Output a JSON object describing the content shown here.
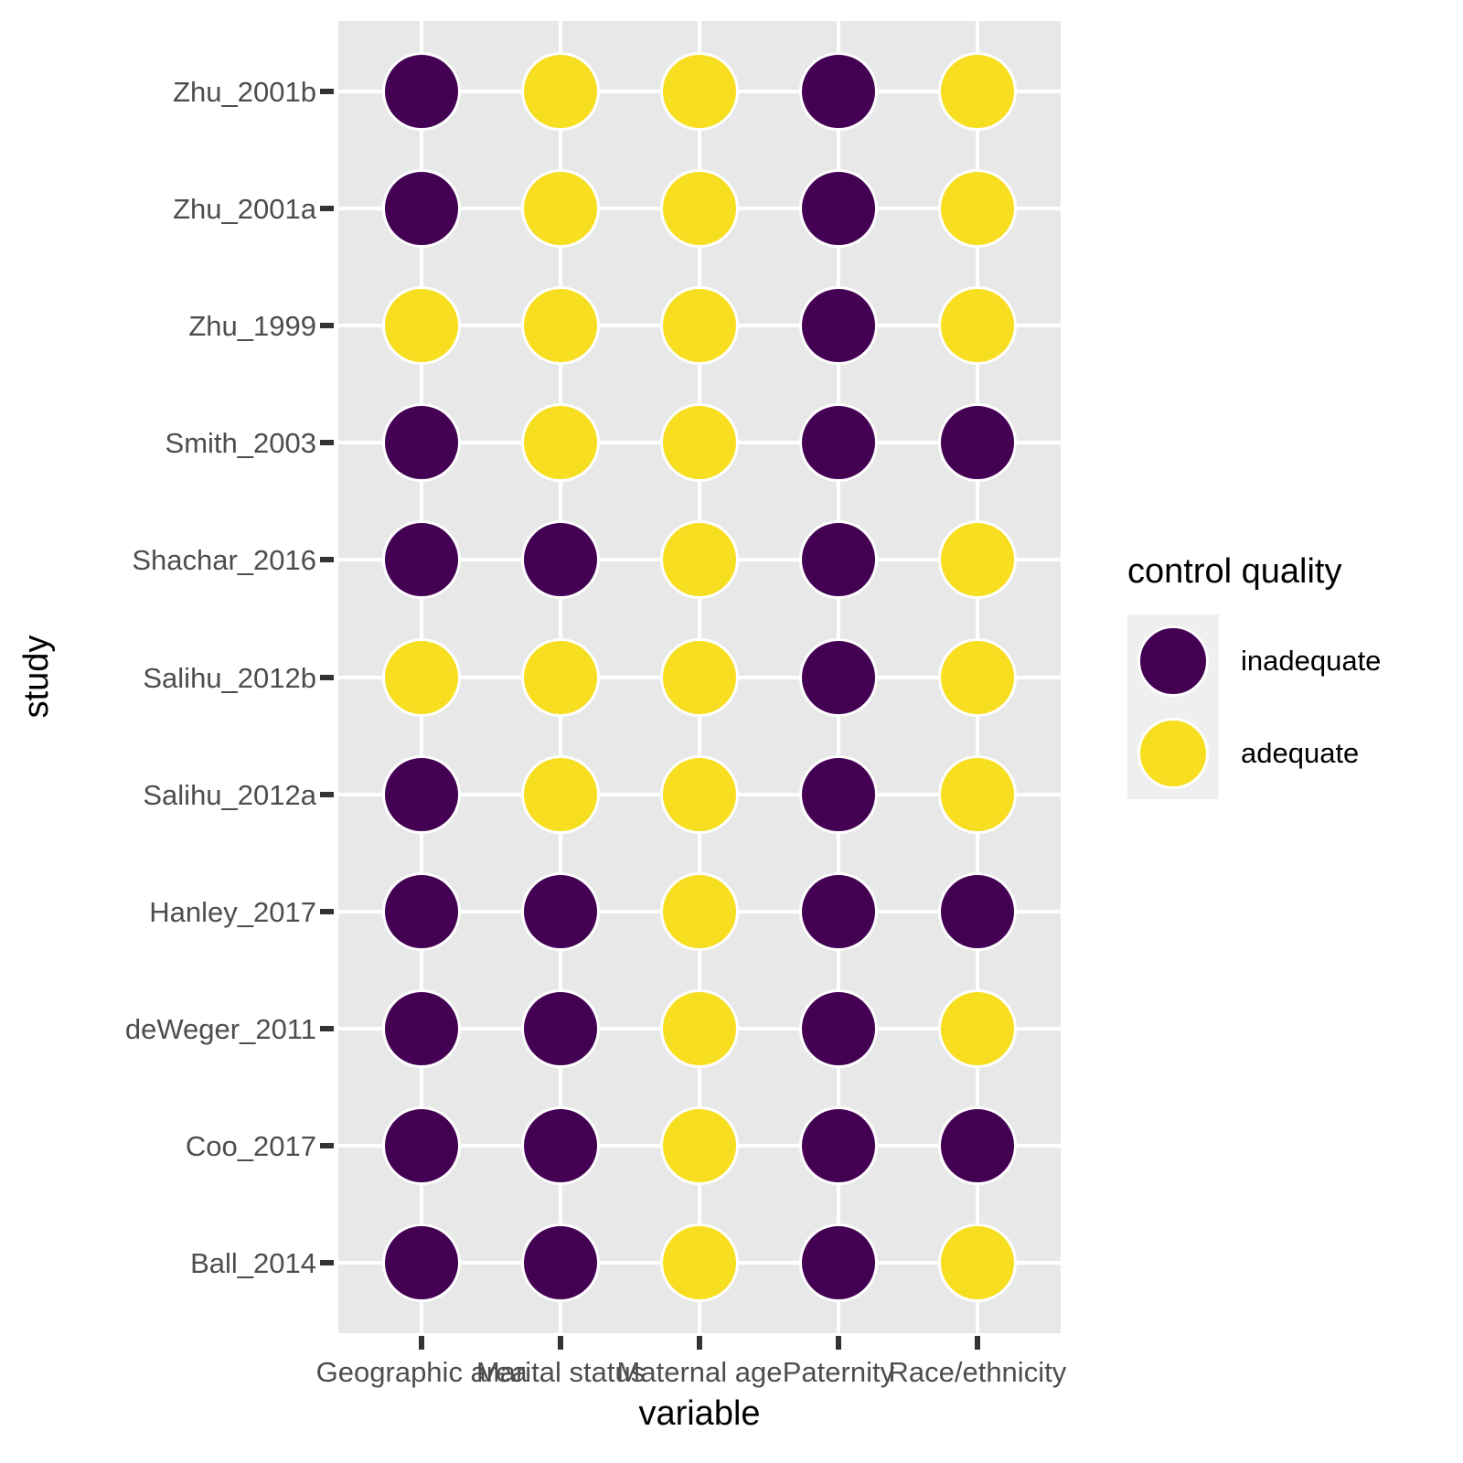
{
  "chart_data": {
    "type": "heatmap",
    "description": "Dot-matrix grid of control quality per study and variable",
    "xlabel": "variable",
    "ylabel": "study",
    "categories_x": [
      "Geographic area",
      "Marital status",
      "Maternal age",
      "Paternity",
      "Race/ethnicity"
    ],
    "categories_y": [
      "Zhu_2001b",
      "Zhu_2001a",
      "Zhu_1999",
      "Smith_2003",
      "Shachar_2016",
      "Salihu_2012b",
      "Salihu_2012a",
      "Hanley_2017",
      "deWeger_2011",
      "Coo_2017",
      "Ball_2014"
    ],
    "values": [
      [
        "inadequate",
        "adequate",
        "adequate",
        "inadequate",
        "adequate"
      ],
      [
        "inadequate",
        "adequate",
        "adequate",
        "inadequate",
        "adequate"
      ],
      [
        "adequate",
        "adequate",
        "adequate",
        "inadequate",
        "adequate"
      ],
      [
        "inadequate",
        "adequate",
        "adequate",
        "inadequate",
        "inadequate"
      ],
      [
        "inadequate",
        "inadequate",
        "adequate",
        "inadequate",
        "adequate"
      ],
      [
        "adequate",
        "adequate",
        "adequate",
        "inadequate",
        "adequate"
      ],
      [
        "inadequate",
        "adequate",
        "adequate",
        "inadequate",
        "adequate"
      ],
      [
        "inadequate",
        "inadequate",
        "adequate",
        "inadequate",
        "inadequate"
      ],
      [
        "inadequate",
        "inadequate",
        "adequate",
        "inadequate",
        "adequate"
      ],
      [
        "inadequate",
        "inadequate",
        "adequate",
        "inadequate",
        "inadequate"
      ],
      [
        "inadequate",
        "inadequate",
        "adequate",
        "inadequate",
        "adequate"
      ]
    ],
    "legend": {
      "title": "control quality",
      "position": "right",
      "entries": [
        {
          "label": "inadequate",
          "color": "#440154"
        },
        {
          "label": "adequate",
          "color": "#F8DE21"
        }
      ]
    },
    "colors": {
      "inadequate": "#440154",
      "adequate": "#F8DE21",
      "panel_background": "#E8E8E8",
      "gridline": "#FFFFFF",
      "point_stroke": "#FFFFFF",
      "axis_text": "#4D4D4D",
      "tick": "#333333",
      "legend_key_background": "#EFEFEF"
    },
    "grid": "major-on",
    "axis_ranges": {
      "x_type": "discrete",
      "y_type": "discrete"
    }
  }
}
